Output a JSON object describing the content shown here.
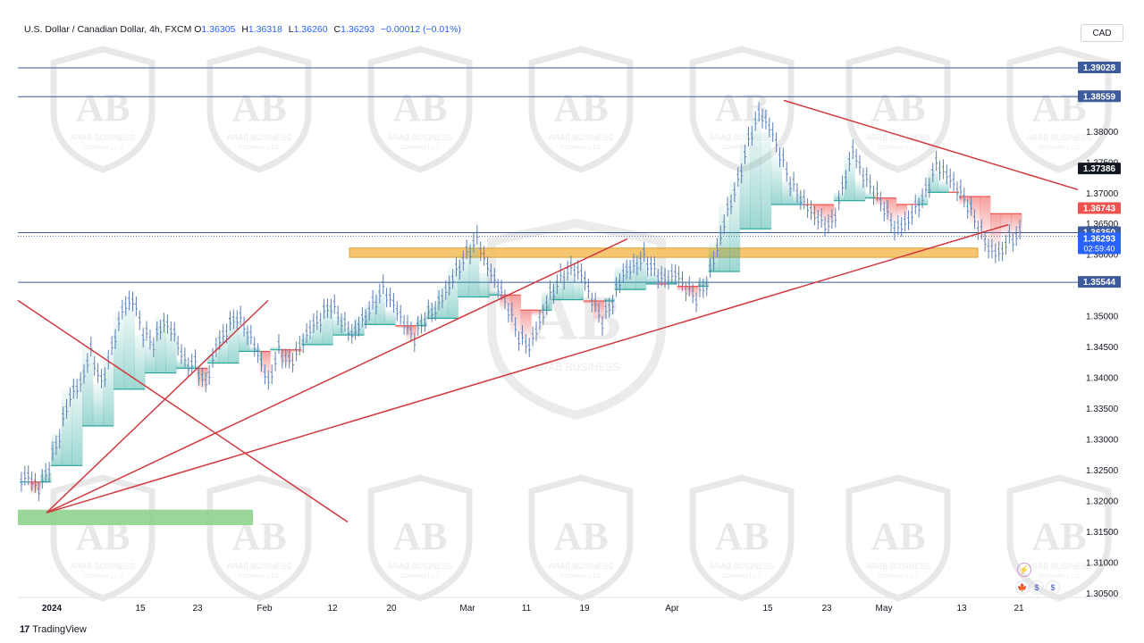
{
  "header": {
    "symbol": "U.S. Dollar / Canadian Dollar, 4h, FXCM",
    "o_label": "O",
    "o_value": "1.36305",
    "h_label": "H",
    "h_value": "1.36318",
    "l_label": "L",
    "l_value": "1.36260",
    "c_label": "C",
    "c_value": "1.36293",
    "change": "−0.00012 (−0.01%)"
  },
  "currency_button": "CAD",
  "footer": {
    "logo": "17",
    "brand": "TradingView"
  },
  "watermark": {
    "name": "ARAB BUSINESS",
    "company": "COMPANY L.L.C",
    "monogram": "AB"
  },
  "colors": {
    "up": "#26a69a",
    "down": "#ef5350",
    "candle": "#5b7fb5",
    "zone_orange": "#f5c163",
    "zone_green": "#8fd18c",
    "trend": "#d0393f",
    "level": "#3d5a9a"
  },
  "chart_data": {
    "type": "candlestick",
    "symbol": "USDCAD",
    "timeframe": "4h",
    "ylim": [
      1.3025,
      1.3955
    ],
    "y_ticks": [
      "1.38000",
      "1.37500",
      "1.37000",
      "1.36500",
      "1.36000",
      "1.35000",
      "1.34500",
      "1.34000",
      "1.33500",
      "1.33000",
      "1.32500",
      "1.32000",
      "1.31500",
      "1.31000",
      "1.30500"
    ],
    "x_ticks": [
      "2024",
      "15",
      "23",
      "Feb",
      "12",
      "20",
      "Mar",
      "11",
      "19",
      "Apr",
      "15",
      "23",
      "May",
      "13",
      "21"
    ],
    "price_labels": [
      {
        "value": 1.39028,
        "text": "1.39028",
        "style": "level"
      },
      {
        "value": 1.38559,
        "text": "1.38559",
        "style": "level"
      },
      {
        "value": 1.37386,
        "text": "1.37386",
        "style": "black"
      },
      {
        "value": 1.36743,
        "text": "1.36743",
        "style": "red"
      },
      {
        "value": 1.3635,
        "text": "1.36350",
        "style": "level"
      },
      {
        "value": 1.36293,
        "text": "1.36293",
        "style": "current"
      },
      {
        "value": 1.35544,
        "text": "1.35544",
        "style": "level"
      }
    ],
    "countdown": "02:59:40",
    "horizontal_levels": [
      1.39028,
      1.38559,
      1.3635,
      1.35544
    ],
    "series": [
      {
        "name": "close",
        "values": [
          1.323,
          1.321,
          1.325,
          1.331,
          1.338,
          1.34,
          1.345,
          1.339,
          1.344,
          1.35,
          1.352,
          1.347,
          1.346,
          1.35,
          1.348,
          1.343,
          1.342,
          1.338,
          1.344,
          1.347,
          1.35,
          1.348,
          1.345,
          1.34,
          1.345,
          1.342,
          1.344,
          1.347,
          1.349,
          1.352,
          1.35,
          1.348,
          1.35,
          1.352,
          1.354,
          1.351,
          1.348,
          1.346,
          1.35,
          1.352,
          1.355,
          1.358,
          1.36,
          1.362,
          1.357,
          1.354,
          1.351,
          1.347,
          1.346,
          1.35,
          1.354,
          1.356,
          1.357,
          1.356,
          1.352,
          1.349,
          1.353,
          1.358,
          1.359,
          1.36,
          1.357,
          1.355,
          1.356,
          1.354,
          1.353,
          1.356,
          1.362,
          1.368,
          1.372,
          1.378,
          1.382,
          1.38,
          1.376,
          1.372,
          1.37,
          1.368,
          1.366,
          1.365,
          1.37,
          1.376,
          1.372,
          1.37,
          1.368,
          1.365,
          1.366,
          1.368,
          1.37,
          1.374,
          1.372,
          1.37,
          1.368,
          1.365,
          1.362,
          1.361,
          1.363,
          1.363
        ]
      }
    ],
    "zones": [
      {
        "name": "supply-demand-zone",
        "y_range": [
          1.3595,
          1.361
        ]
      },
      {
        "name": "support-zone",
        "y_range": [
          1.316,
          1.3185
        ]
      }
    ],
    "trendlines": [
      {
        "name": "descending-resistance",
        "from_price": 1.385,
        "to_price": 1.3705
      },
      {
        "name": "rising-support",
        "from_price": 1.318,
        "to_price": 1.3648
      },
      {
        "name": "rising-line-2",
        "from_price": 1.318,
        "to_price": 1.3625
      },
      {
        "name": "rising-line-3",
        "from_price": 1.318,
        "to_price": 1.3525
      },
      {
        "name": "falling-line",
        "from_price": 1.3525,
        "to_price": 1.3165
      }
    ]
  }
}
